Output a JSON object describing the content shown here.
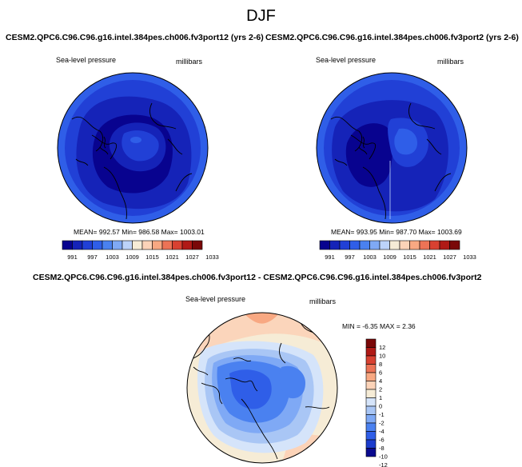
{
  "page": {
    "title": "DJF"
  },
  "panels": [
    {
      "title": "CESM2.QPC6.C96.C96.g16.intel.384pes.ch006.fv3port12 (yrs 2-6)",
      "variable": "Sea-level pressure",
      "units": "millibars",
      "stats": "MEAN= 992.57   Min= 986.58   Max= 1003.01",
      "colorbar": {
        "colors": [
          "#08038f",
          "#1523b8",
          "#2140d6",
          "#2f5ee8",
          "#4a81f0",
          "#7fa9f5",
          "#bcd3fa",
          "#f6ecd6",
          "#fcd3b8",
          "#f8a882",
          "#ec7356",
          "#d84131",
          "#b01a16",
          "#7a0808"
        ],
        "tick_labels": [
          "991",
          "997",
          "1003",
          "1009",
          "1015",
          "1021",
          "1027",
          "1033"
        ]
      }
    },
    {
      "title": "CESM2.QPC6.C96.C96.g16.intel.384pes.ch006.fv3port2 (yrs 2-6)",
      "variable": "Sea-level pressure",
      "units": "millibars",
      "stats": "MEAN= 993.95   Min= 987.70   Max= 1003.69",
      "colorbar": {
        "colors": [
          "#08038f",
          "#1523b8",
          "#2140d6",
          "#2f5ee8",
          "#4a81f0",
          "#7fa9f5",
          "#bcd3fa",
          "#f6ecd6",
          "#fcd3b8",
          "#f8a882",
          "#ec7356",
          "#d84131",
          "#b01a16",
          "#7a0808"
        ],
        "tick_labels": [
          "991",
          "997",
          "1003",
          "1009",
          "1015",
          "1021",
          "1027",
          "1033"
        ]
      }
    }
  ],
  "diff_panel": {
    "title": "CESM2.QPC6.C96.C96.g16.intel.384pes.ch006.fv3port12 - CESM2.QPC6.C96.C96.g16.intel.384pes.ch006.fv3port2",
    "variable": "Sea-level pressure",
    "units": "millibars",
    "minmax": "MIN =  -6.35 MAX =   2.36",
    "colorbar": {
      "colors": [
        "#7a0808",
        "#b01a16",
        "#d84131",
        "#ec7356",
        "#f8a882",
        "#fcd3b8",
        "#f6ecd6",
        "#d5e4fa",
        "#a9c6f5",
        "#7fa9f5",
        "#4a81f0",
        "#2f5ee8",
        "#1b3ccd",
        "#0a0a8f"
      ],
      "tick_labels": [
        "12",
        "10",
        "8",
        "6",
        "4",
        "2",
        "1",
        "0",
        "-1",
        "-2",
        "-4",
        "-6",
        "-8",
        "-10",
        "-12"
      ]
    }
  }
}
